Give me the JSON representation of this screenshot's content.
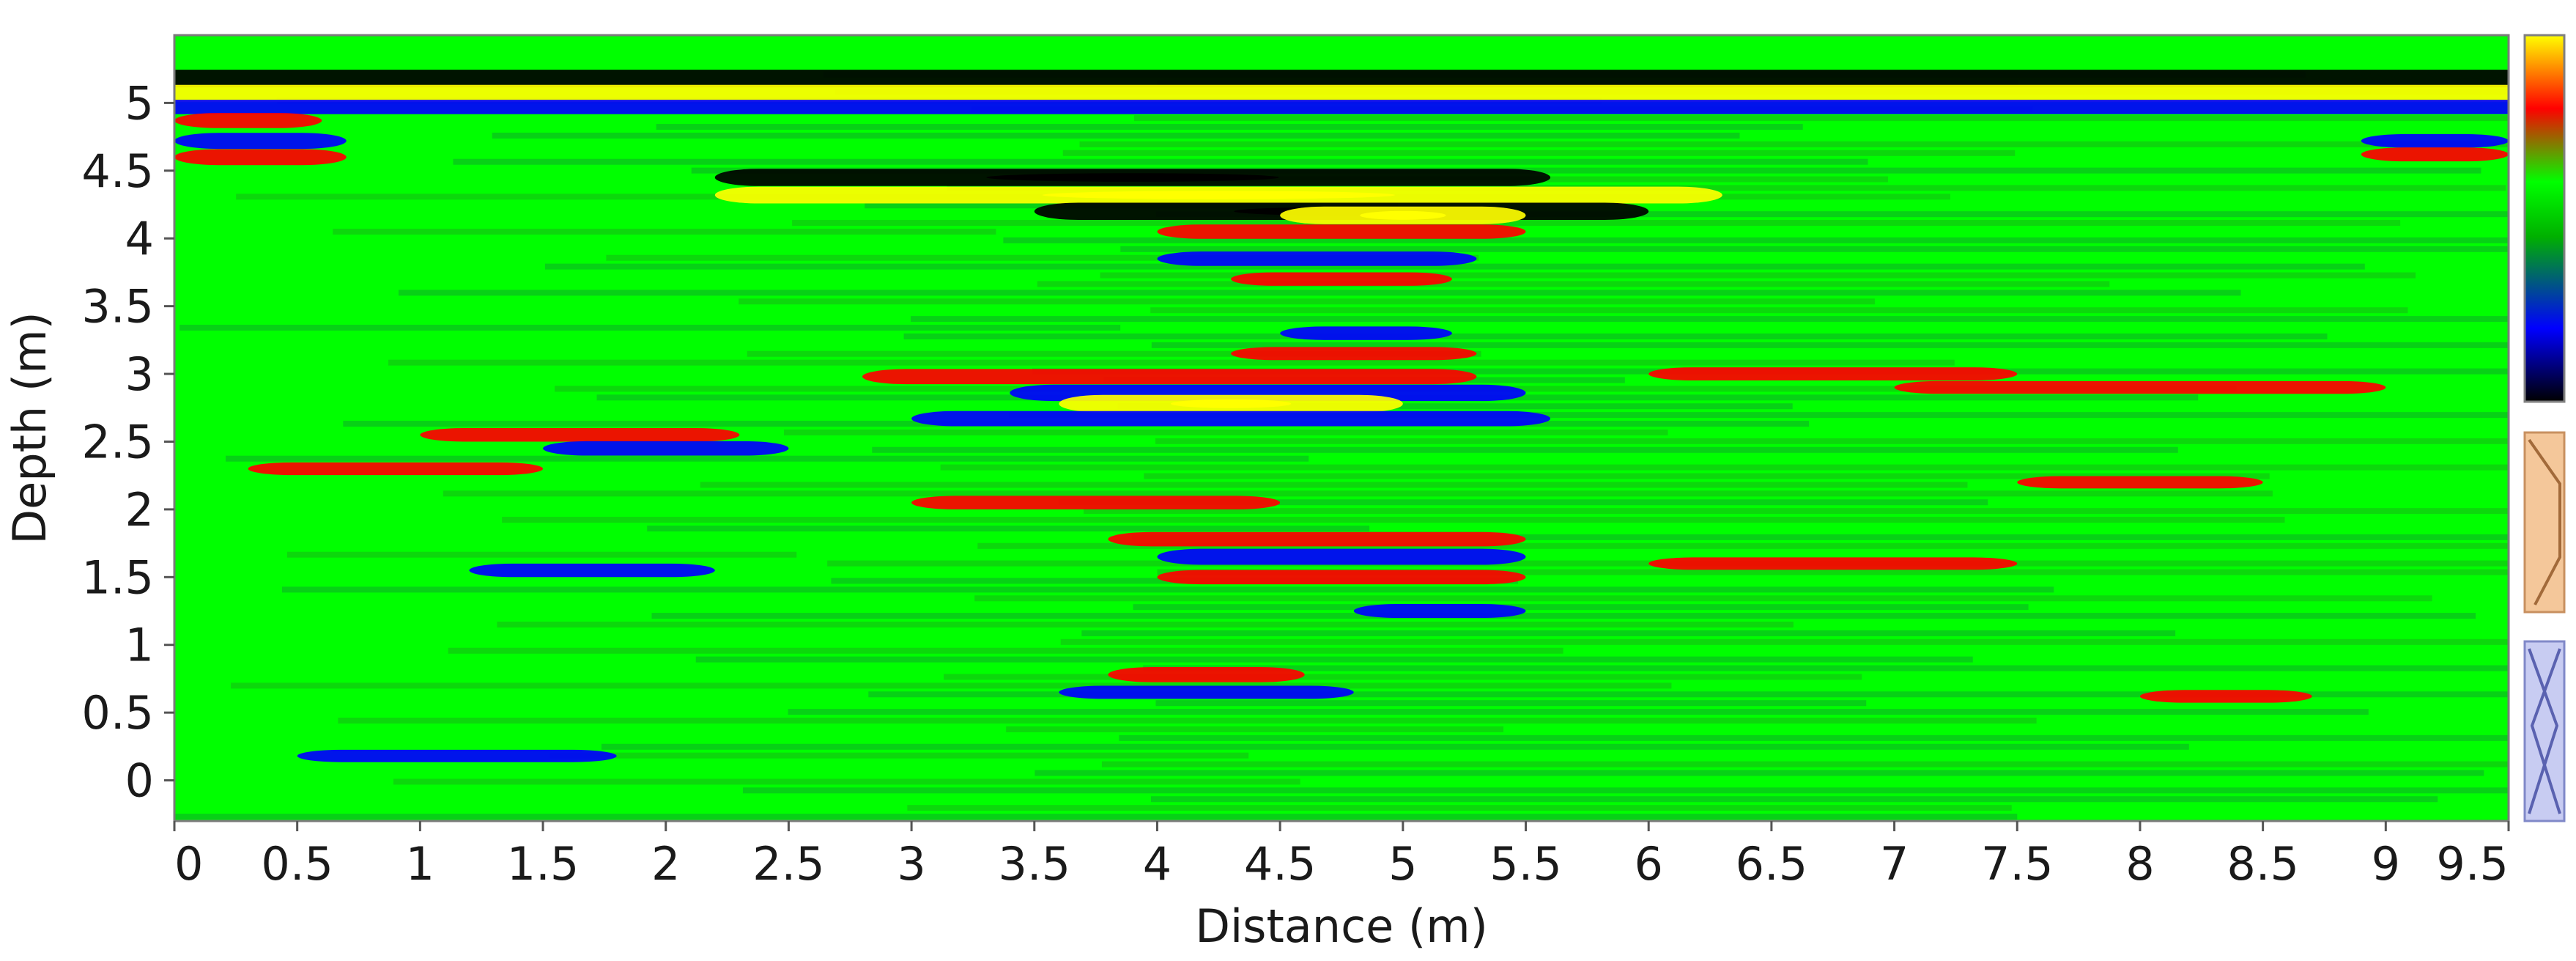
{
  "chart_data": {
    "type": "heatmap",
    "title": "",
    "xlabel": "Distance (m)",
    "ylabel": "Depth (m)",
    "xlim": [
      0,
      9.5
    ],
    "ylim": [
      -0.3,
      5.5
    ],
    "x_ticks": [
      "0",
      "0.5",
      "1",
      "1.5",
      "2",
      "2.5",
      "3",
      "3.5",
      "4",
      "4.5",
      "5",
      "5.5",
      "6",
      "6.5",
      "7",
      "7.5",
      "8",
      "8.5",
      "9",
      "9.5"
    ],
    "y_ticks": [
      "0",
      "0.5",
      "1",
      "1.5",
      "2",
      "2.5",
      "3",
      "3.5",
      "4",
      "4.5",
      "5"
    ],
    "colorscale": [
      "#000000",
      "#0000ff",
      "#00b000",
      "#00ff00",
      "#ff0000",
      "#ffff00"
    ],
    "grid": false,
    "legend": "right",
    "reflections": [
      {
        "x": [
          0,
          9.5
        ],
        "depth": 5.18,
        "amp": -1.0
      },
      {
        "x": [
          0,
          9.5
        ],
        "depth": 5.07,
        "amp": 0.95
      },
      {
        "x": [
          0,
          9.5
        ],
        "depth": 4.97,
        "amp": -0.6
      },
      {
        "x": [
          0,
          0.6
        ],
        "depth": 4.87,
        "amp": 0.7
      },
      {
        "x": [
          0,
          0.7
        ],
        "depth": 4.72,
        "amp": -0.8
      },
      {
        "x": [
          0,
          0.7
        ],
        "depth": 4.6,
        "amp": 0.8
      },
      {
        "x": [
          8.9,
          9.5
        ],
        "depth": 4.72,
        "amp": -0.5
      },
      {
        "x": [
          8.9,
          9.5
        ],
        "depth": 4.62,
        "amp": 0.55
      },
      {
        "x": [
          2.2,
          5.6
        ],
        "depth": 4.45,
        "amp": -0.95
      },
      {
        "x": [
          2.2,
          6.3
        ],
        "depth": 4.32,
        "amp": 0.9
      },
      {
        "x": [
          3.5,
          6.0
        ],
        "depth": 4.2,
        "amp": -0.95
      },
      {
        "x": [
          4.5,
          5.5
        ],
        "depth": 4.17,
        "amp": 1.0
      },
      {
        "x": [
          4.0,
          5.5
        ],
        "depth": 4.05,
        "amp": 0.6
      },
      {
        "x": [
          4.0,
          5.3
        ],
        "depth": 3.85,
        "amp": -0.6
      },
      {
        "x": [
          4.3,
          5.2
        ],
        "depth": 3.7,
        "amp": 0.5
      },
      {
        "x": [
          4.5,
          5.2
        ],
        "depth": 3.3,
        "amp": -0.5
      },
      {
        "x": [
          4.3,
          5.3
        ],
        "depth": 3.15,
        "amp": 0.45
      },
      {
        "x": [
          2.8,
          5.3
        ],
        "depth": 2.98,
        "amp": 0.7
      },
      {
        "x": [
          3.4,
          5.5
        ],
        "depth": 2.86,
        "amp": -0.85
      },
      {
        "x": [
          3.6,
          5.0
        ],
        "depth": 2.78,
        "amp": 1.0
      },
      {
        "x": [
          3.0,
          5.6
        ],
        "depth": 2.67,
        "amp": -0.7
      },
      {
        "x": [
          1.0,
          2.3
        ],
        "depth": 2.55,
        "amp": 0.5
      },
      {
        "x": [
          1.5,
          2.5
        ],
        "depth": 2.45,
        "amp": -0.6
      },
      {
        "x": [
          0.3,
          1.5
        ],
        "depth": 2.3,
        "amp": 0.4
      },
      {
        "x": [
          3.0,
          4.5
        ],
        "depth": 2.05,
        "amp": 0.5
      },
      {
        "x": [
          3.8,
          5.5
        ],
        "depth": 1.78,
        "amp": 0.6
      },
      {
        "x": [
          4.0,
          5.5
        ],
        "depth": 1.65,
        "amp": -0.8
      },
      {
        "x": [
          4.0,
          5.5
        ],
        "depth": 1.5,
        "amp": 0.6
      },
      {
        "x": [
          1.2,
          2.2
        ],
        "depth": 1.55,
        "amp": -0.5
      },
      {
        "x": [
          4.8,
          5.5
        ],
        "depth": 1.25,
        "amp": -0.55
      },
      {
        "x": [
          3.8,
          4.6
        ],
        "depth": 0.78,
        "amp": 0.7
      },
      {
        "x": [
          3.6,
          4.8
        ],
        "depth": 0.65,
        "amp": -0.45
      },
      {
        "x": [
          0.5,
          1.8
        ],
        "depth": 0.18,
        "amp": -0.35
      },
      {
        "x": [
          6.0,
          7.5
        ],
        "depth": 3.0,
        "amp": 0.45
      },
      {
        "x": [
          7.0,
          9.0
        ],
        "depth": 2.9,
        "amp": 0.4
      },
      {
        "x": [
          7.5,
          8.5
        ],
        "depth": 2.2,
        "amp": 0.35
      },
      {
        "x": [
          6.0,
          7.5
        ],
        "depth": 1.6,
        "amp": 0.35
      },
      {
        "x": [
          8.0,
          8.7
        ],
        "depth": 0.62,
        "amp": 0.4
      }
    ]
  }
}
